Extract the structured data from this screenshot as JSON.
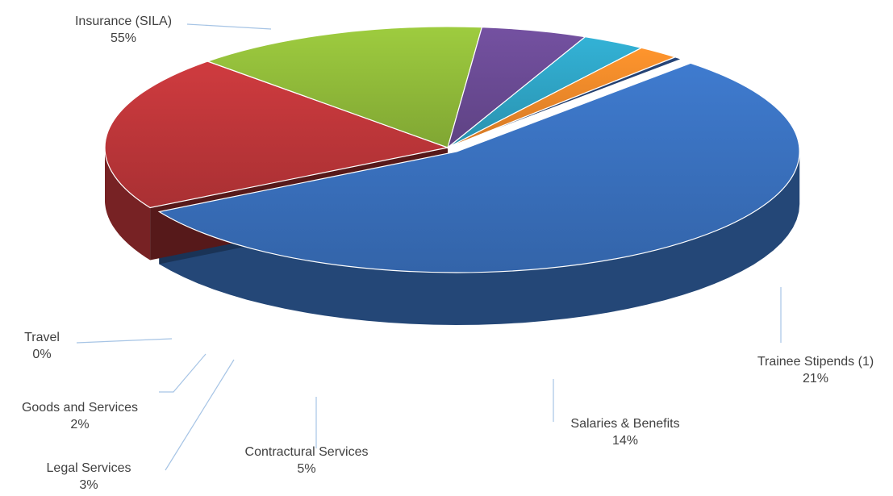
{
  "chart_data": {
    "type": "pie",
    "style": "3d-exploded-tilted",
    "legend": "none",
    "slices": [
      {
        "name": "Insurance (SILA)",
        "value": 55,
        "label": "55%",
        "color": "#3A72C0"
      },
      {
        "name": "Trainee Stipends (1)",
        "value": 21,
        "label": "21%",
        "color": "#C0373A"
      },
      {
        "name": "Salaries & Benefits",
        "value": 14,
        "label": "14%",
        "color": "#92BD3A"
      },
      {
        "name": "Contractural Services",
        "value": 5,
        "label": "5%",
        "color": "#6B4B95"
      },
      {
        "name": "Legal Services",
        "value": 3,
        "label": "3%",
        "color": "#2FA5C6"
      },
      {
        "name": "Goods and Services",
        "value": 2,
        "label": "2%",
        "color": "#F18A2A"
      },
      {
        "name": "Travel",
        "value": 0.4,
        "label": "0%",
        "color": "#23406F"
      }
    ]
  }
}
